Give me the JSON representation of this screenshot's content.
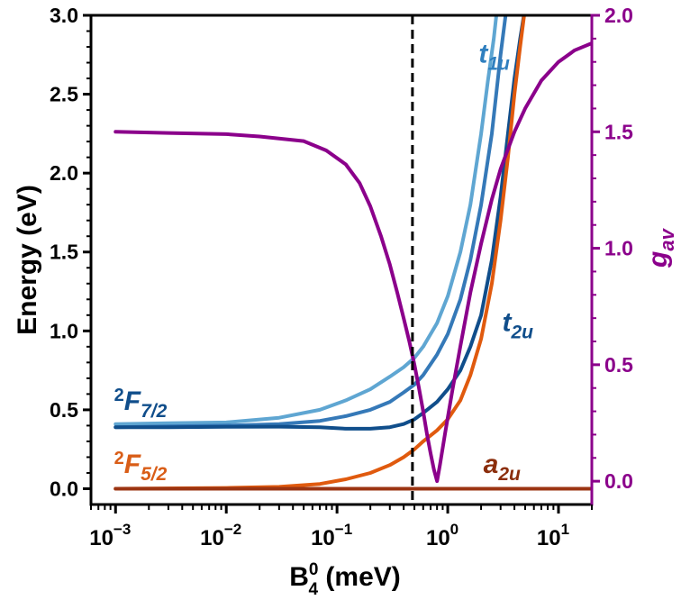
{
  "chart_data": {
    "type": "line",
    "xscale": "log",
    "xlim": [
      0.0006,
      20
    ],
    "ylim_left": [
      -0.1,
      3.0
    ],
    "ylim_right": [
      -0.1,
      2.0
    ],
    "xlabel": {
      "base": "B",
      "sup": "0",
      "sub": "4",
      "unit": " (meV)"
    },
    "ylabel_left": "Energy (eV)",
    "ylabel_right": {
      "base": "g",
      "sub": "av"
    },
    "colors": {
      "g_av": "#8b008b",
      "right_axis": "#8b008b",
      "t1u": "#5fa6d2",
      "t1u_2": "#3579b8",
      "t2u": "#104e8b",
      "a2u_low": "#e05a0e",
      "a2u_flat": "#9b3412",
      "label_t1u": "#2f7fbf",
      "label_t2u": "#104e8b",
      "label_a2u": "#8b2e0c",
      "label_F72": "#104e8b",
      "label_F52": "#d95d17"
    },
    "x_ticks": [
      {
        "value": 0.001,
        "base": "10",
        "exp": "−3"
      },
      {
        "value": 0.01,
        "base": "10",
        "exp": "−2"
      },
      {
        "value": 0.1,
        "base": "10",
        "exp": "−1"
      },
      {
        "value": 1,
        "base": "10",
        "exp": "0"
      },
      {
        "value": 10,
        "base": "10",
        "exp": "1"
      }
    ],
    "y_ticks_left": [
      "0.0",
      "0.5",
      "1.0",
      "1.5",
      "2.0",
      "2.5",
      "3.0"
    ],
    "y_ticks_right": [
      "0.0",
      "0.5",
      "1.0",
      "1.5",
      "2.0"
    ],
    "vline_x": 0.48,
    "annotations": [
      {
        "base": "t",
        "sub": "1u",
        "x": 1.9,
        "y": 2.7,
        "color_key": "label_t1u"
      },
      {
        "base": "t",
        "sub": "2u",
        "x": 3.1,
        "y": 1.0,
        "color_key": "label_t2u"
      },
      {
        "base": "a",
        "sub": "2u",
        "x": 2.1,
        "y": 0.1,
        "color_key": "label_a2u"
      },
      {
        "sup": "2",
        "base": "F",
        "sub": "7/2",
        "x": 0.00097,
        "y": 0.5,
        "color_key": "label_F72"
      },
      {
        "sup": "2",
        "base": "F",
        "sub": "5/2",
        "x": 0.00097,
        "y": 0.1,
        "color_key": "label_F52"
      }
    ],
    "series": [
      {
        "color_key": "t1u",
        "axis": "left",
        "x": [
          0.001,
          0.003,
          0.01,
          0.03,
          0.07,
          0.12,
          0.2,
          0.3,
          0.4,
          0.5,
          0.6,
          0.8,
          1.0,
          1.3,
          1.6,
          2.0,
          2.3,
          2.6,
          2.8
        ],
        "y": [
          0.41,
          0.415,
          0.42,
          0.45,
          0.5,
          0.56,
          0.63,
          0.71,
          0.77,
          0.83,
          0.9,
          1.05,
          1.22,
          1.5,
          1.8,
          2.25,
          2.58,
          2.85,
          3.05
        ]
      },
      {
        "color_key": "t1u_2",
        "axis": "left",
        "x": [
          0.001,
          0.003,
          0.01,
          0.03,
          0.07,
          0.12,
          0.2,
          0.3,
          0.4,
          0.5,
          0.6,
          0.8,
          1.0,
          1.3,
          1.6,
          2.0,
          2.5,
          3.0,
          3.4
        ],
        "y": [
          0.39,
          0.395,
          0.4,
          0.41,
          0.43,
          0.46,
          0.5,
          0.55,
          0.61,
          0.66,
          0.72,
          0.85,
          0.98,
          1.2,
          1.45,
          1.8,
          2.25,
          2.75,
          3.05
        ]
      },
      {
        "color_key": "t2u",
        "axis": "left",
        "x": [
          0.001,
          0.003,
          0.01,
          0.03,
          0.07,
          0.12,
          0.2,
          0.3,
          0.4,
          0.5,
          0.6,
          0.8,
          1.0,
          1.3,
          1.6,
          2.0,
          2.5,
          3.0,
          3.5,
          4.0,
          4.5,
          5.0
        ],
        "y": [
          0.39,
          0.39,
          0.392,
          0.393,
          0.39,
          0.38,
          0.38,
          0.39,
          0.41,
          0.44,
          0.48,
          0.55,
          0.63,
          0.75,
          0.9,
          1.1,
          1.45,
          1.85,
          2.25,
          2.6,
          2.85,
          3.05
        ]
      },
      {
        "color_key": "a2u_low",
        "axis": "left",
        "x": [
          0.001,
          0.01,
          0.03,
          0.07,
          0.12,
          0.2,
          0.3,
          0.4,
          0.5,
          0.6,
          0.8,
          1.0,
          1.3,
          1.6,
          2.0,
          2.5,
          3.0,
          3.5,
          4.0,
          4.5,
          5.0
        ],
        "y": [
          0.0,
          0.005,
          0.012,
          0.03,
          0.06,
          0.1,
          0.15,
          0.2,
          0.25,
          0.3,
          0.37,
          0.44,
          0.56,
          0.72,
          0.95,
          1.3,
          1.7,
          2.1,
          2.5,
          2.8,
          3.05
        ]
      },
      {
        "color_key": "a2u_flat",
        "axis": "left",
        "x": [
          0.001,
          20
        ],
        "y": [
          0.0,
          0.0
        ]
      },
      {
        "color_key": "g_av",
        "axis": "right",
        "x": [
          0.001,
          0.003,
          0.01,
          0.02,
          0.05,
          0.08,
          0.12,
          0.16,
          0.2,
          0.25,
          0.3,
          0.35,
          0.4,
          0.45,
          0.5,
          0.55,
          0.6,
          0.65,
          0.7,
          0.75,
          0.8,
          0.85,
          0.95,
          1.1,
          1.3,
          1.6,
          2.0,
          2.5,
          3.0,
          4.0,
          5.0,
          7.0,
          10.0,
          14.0,
          20.0
        ],
        "y": [
          1.5,
          1.495,
          1.49,
          1.48,
          1.46,
          1.42,
          1.36,
          1.28,
          1.18,
          1.05,
          0.93,
          0.81,
          0.7,
          0.6,
          0.5,
          0.4,
          0.3,
          0.2,
          0.12,
          0.05,
          0.0,
          0.07,
          0.21,
          0.39,
          0.58,
          0.81,
          1.02,
          1.21,
          1.34,
          1.5,
          1.6,
          1.72,
          1.8,
          1.85,
          1.88
        ]
      }
    ]
  }
}
